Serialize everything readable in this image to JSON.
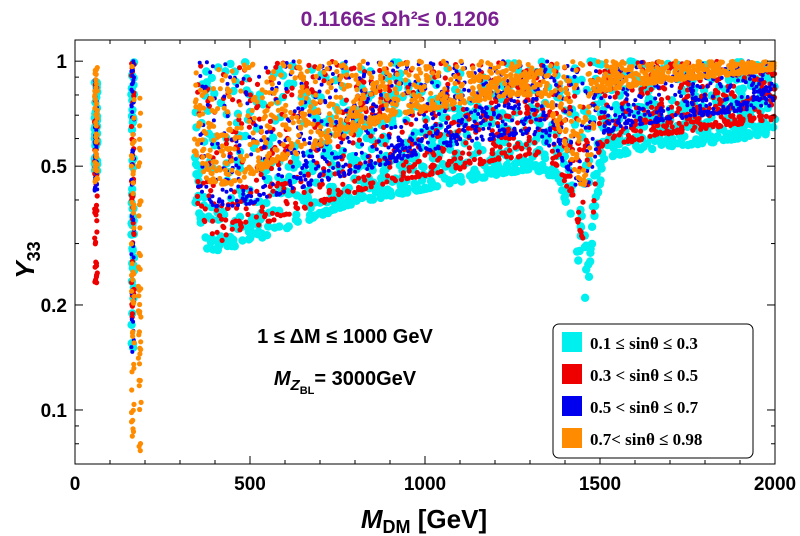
{
  "chart_data": {
    "type": "scatter",
    "title": "0.1166≤ Ωh²≤ 0.1206",
    "xlabel_main": "M",
    "xlabel_sub": "DM",
    "xlabel_unit": " [GeV]",
    "ylabel_main": "Y",
    "ylabel_sub": "33",
    "xlim": [
      0,
      2000
    ],
    "ylim": [
      0.07,
      1.15
    ],
    "yscale": "log",
    "xticks": [
      {
        "value": 0,
        "label": "0"
      },
      {
        "value": 500,
        "label": "500"
      },
      {
        "value": 1000,
        "label": "1000"
      },
      {
        "value": 1500,
        "label": "1500"
      },
      {
        "value": 2000,
        "label": "2000"
      }
    ],
    "yticks": [
      {
        "value": 0.1,
        "label": "0.1"
      },
      {
        "value": 0.2,
        "label": "0.2"
      },
      {
        "value": 0.5,
        "label": "0.5"
      },
      {
        "value": 1,
        "label": "1"
      }
    ],
    "annotations": [
      {
        "text": "1 ≤  ΔM  ≤ 1000 GeV"
      },
      {
        "text_main": "M",
        "text_sub": "Z",
        "text_subsub": "BL",
        "text_rest": "= 3000GeV"
      }
    ],
    "legend_position": "lower-right",
    "series": [
      {
        "name": "0.1 ≤ sinθ ≤ 0.3",
        "color": "#00f0f0",
        "boundary": [
          [
            340,
            0.4
          ],
          [
            380,
            0.28
          ],
          [
            420,
            0.29
          ],
          [
            500,
            0.3
          ],
          [
            600,
            0.33
          ],
          [
            700,
            0.36
          ],
          [
            800,
            0.39
          ],
          [
            900,
            0.41
          ],
          [
            1000,
            0.43
          ],
          [
            1100,
            0.45
          ],
          [
            1200,
            0.47
          ],
          [
            1300,
            0.49
          ],
          [
            1380,
            0.46
          ],
          [
            1420,
            0.34
          ],
          [
            1440,
            0.26
          ],
          [
            1455,
            0.2
          ],
          [
            1470,
            0.24
          ],
          [
            1490,
            0.4
          ],
          [
            1520,
            0.53
          ],
          [
            1600,
            0.55
          ],
          [
            1700,
            0.57
          ],
          [
            1800,
            0.58
          ],
          [
            1900,
            0.6
          ],
          [
            2000,
            0.61
          ]
        ],
        "strips": [
          [
            60,
            0.48,
            0.9
          ],
          [
            165,
            0.15,
            1.0
          ]
        ]
      },
      {
        "name": "0.3 < sinθ ≤ 0.5",
        "color": "#ee0000",
        "boundary": [
          [
            350,
            0.38
          ],
          [
            400,
            0.3
          ],
          [
            500,
            0.33
          ],
          [
            600,
            0.36
          ],
          [
            700,
            0.39
          ],
          [
            800,
            0.42
          ],
          [
            900,
            0.45
          ],
          [
            1000,
            0.47
          ],
          [
            1100,
            0.49
          ],
          [
            1200,
            0.52
          ],
          [
            1300,
            0.53
          ],
          [
            1380,
            0.5
          ],
          [
            1420,
            0.4
          ],
          [
            1450,
            0.3
          ],
          [
            1480,
            0.35
          ],
          [
            1500,
            0.57
          ],
          [
            1600,
            0.59
          ],
          [
            1700,
            0.62
          ],
          [
            1800,
            0.64
          ],
          [
            1900,
            0.66
          ],
          [
            2000,
            0.68
          ]
        ],
        "strips": [
          [
            60,
            0.22,
            0.88
          ],
          [
            165,
            0.16,
            1.0
          ]
        ]
      },
      {
        "name": "0.5 < sinθ ≤ 0.7",
        "color": "#0000ee",
        "boundary": [
          [
            350,
            0.43
          ],
          [
            400,
            0.38
          ],
          [
            500,
            0.39
          ],
          [
            600,
            0.42
          ],
          [
            700,
            0.45
          ],
          [
            800,
            0.48
          ],
          [
            900,
            0.51
          ],
          [
            1000,
            0.55
          ],
          [
            1100,
            0.58
          ],
          [
            1200,
            0.6
          ],
          [
            1300,
            0.62
          ],
          [
            1380,
            0.55
          ],
          [
            1420,
            0.45
          ],
          [
            1450,
            0.4
          ],
          [
            1480,
            0.48
          ],
          [
            1500,
            0.62
          ],
          [
            1600,
            0.65
          ],
          [
            1700,
            0.68
          ],
          [
            1800,
            0.7
          ],
          [
            1900,
            0.72
          ],
          [
            2000,
            0.75
          ]
        ],
        "strips": [
          [
            60,
            0.42,
            0.95
          ],
          [
            165,
            0.14,
            1.0
          ]
        ]
      },
      {
        "name": "0.7< sinθ ≤ 0.98",
        "color": "#ff8c00",
        "boundary": [
          [
            340,
            0.55
          ],
          [
            380,
            0.45
          ],
          [
            450,
            0.44
          ],
          [
            550,
            0.5
          ],
          [
            650,
            0.55
          ],
          [
            750,
            0.6
          ],
          [
            850,
            0.65
          ],
          [
            950,
            0.7
          ],
          [
            1050,
            0.74
          ],
          [
            1150,
            0.77
          ],
          [
            1250,
            0.8
          ],
          [
            1330,
            0.8
          ],
          [
            1380,
            0.65
          ],
          [
            1420,
            0.5
          ],
          [
            1450,
            0.42
          ],
          [
            1480,
            0.55
          ],
          [
            1500,
            0.82
          ],
          [
            1600,
            0.85
          ],
          [
            1700,
            0.88
          ],
          [
            1800,
            0.9
          ],
          [
            1900,
            0.92
          ],
          [
            2000,
            0.95
          ]
        ],
        "strips": [
          [
            60,
            0.45,
            0.96
          ],
          [
            165,
            0.075,
            1.0
          ],
          [
            185,
            0.075,
            0.9
          ]
        ]
      }
    ]
  }
}
